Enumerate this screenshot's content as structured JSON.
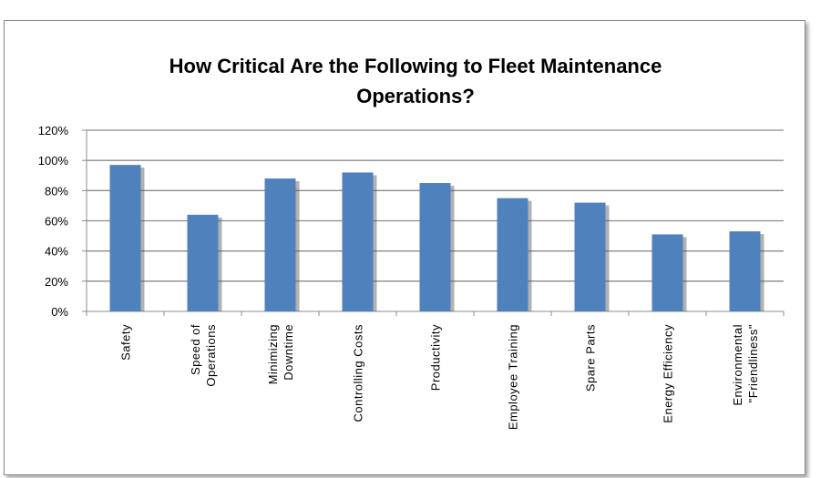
{
  "chart_data": {
    "type": "bar",
    "title": "How Critical Are the Following to Fleet Maintenance Operations?",
    "title_lines": [
      "How Critical Are the Following to Fleet Maintenance",
      "Operations?"
    ],
    "categories": [
      "Safety",
      "Speed of Operations",
      "Minimizing Downtime",
      "Controlling Costs",
      "Productivity",
      "Employee Training",
      "Spare Parts",
      "Energy Efficiency",
      "Environmental \"Friendliness\""
    ],
    "category_lines": [
      [
        "Safety"
      ],
      [
        "Speed of",
        "Operations"
      ],
      [
        "Minimizing",
        "Downtime"
      ],
      [
        "Controlling Costs"
      ],
      [
        "Productivity"
      ],
      [
        "Employee Training"
      ],
      [
        "Spare Parts"
      ],
      [
        "Energy Efficiency"
      ],
      [
        "Environmental",
        "\"Friendliness\""
      ]
    ],
    "values": [
      97,
      64,
      88,
      92,
      85,
      75,
      72,
      51,
      53
    ],
    "ylim": [
      0,
      120
    ],
    "yticks": [
      "0%",
      "20%",
      "40%",
      "60%",
      "80%",
      "100%",
      "120%"
    ],
    "xlabel": "",
    "ylabel": "",
    "grid": true,
    "bar_color": "#4f81bd"
  }
}
